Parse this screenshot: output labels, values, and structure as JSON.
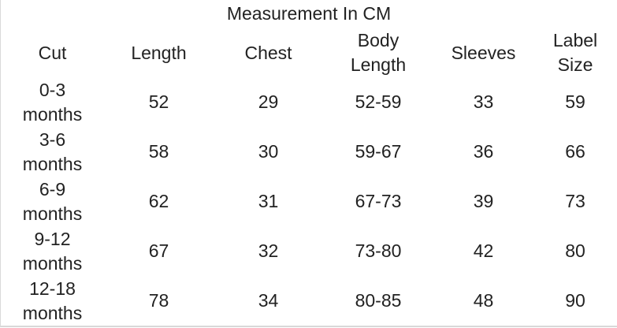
{
  "page": {
    "background_color": "#ffffff",
    "text_color": "#222222",
    "border_color": "#dadada"
  },
  "table": {
    "title": "Measurement In CM",
    "columns": [
      "Cut",
      "Length",
      "Chest",
      "Body\nLength",
      "Sleeves",
      "Label\nSize"
    ],
    "rows": [
      [
        "0-3\nmonths",
        "52",
        "29",
        "52-59",
        "33",
        "59"
      ],
      [
        "3-6\nmonths",
        "58",
        "30",
        "59-67",
        "36",
        "66"
      ],
      [
        "6-9\nmonths",
        "62",
        "31",
        "67-73",
        "39",
        "73"
      ],
      [
        "9-12\nmonths",
        "67",
        "32",
        "73-80",
        "42",
        "80"
      ],
      [
        "12-18\nmonths",
        "78",
        "34",
        "80-85",
        "48",
        "90"
      ]
    ]
  }
}
